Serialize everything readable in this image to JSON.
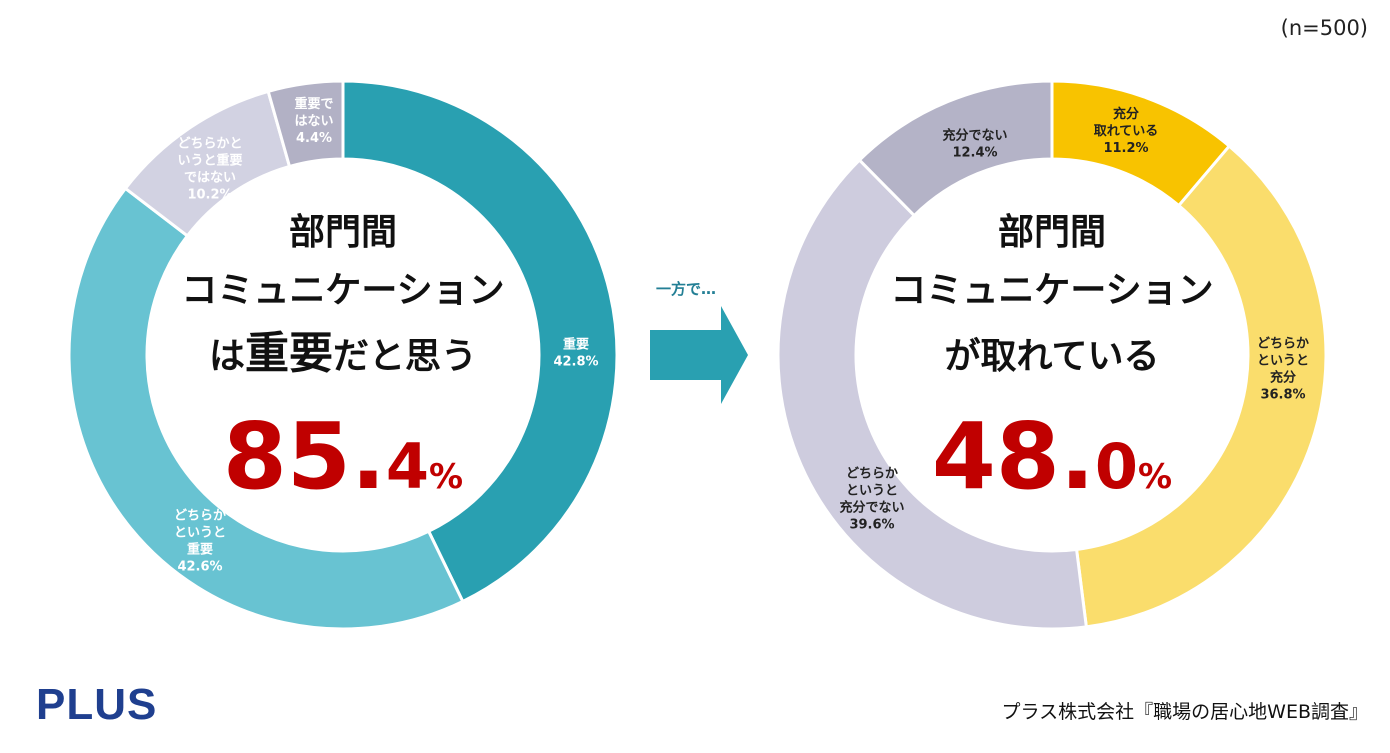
{
  "sample_size": "(n=500)",
  "brand": {
    "logo_text": "PLUS",
    "source": "プラス株式会社『職場の居心地WEB調査』"
  },
  "arrow": {
    "label": "一方で…"
  },
  "chart_data": [
    {
      "type": "pie",
      "donut": true,
      "center_title": [
        [
          {
            "text": "部門間",
            "big": false
          }
        ],
        [
          {
            "text": "コミュニケーション",
            "big": false
          }
        ],
        [
          {
            "text": "は",
            "big": false
          },
          {
            "text": "重要",
            "big": true
          },
          {
            "text": "だと思う",
            "big": false
          }
        ]
      ],
      "headline": {
        "number": "85.",
        "decimal": "4",
        "unit": "%"
      },
      "slices": [
        {
          "label_lines": [
            "重要",
            "42.8%"
          ],
          "value": 42.8,
          "color": "#29a0b1",
          "text_color": "#ffffff"
        },
        {
          "label_lines": [
            "どちらか",
            "というと",
            "重要",
            "42.6%"
          ],
          "value": 42.6,
          "color": "#68c3d2",
          "text_color": "#ffffff"
        },
        {
          "label_lines": [
            "どちらかと",
            "いうと重要",
            "ではない",
            "10.2%"
          ],
          "value": 10.2,
          "color": "#d2d2e2",
          "text_color": "#ffffff"
        },
        {
          "label_lines": [
            "重要で",
            "はない",
            "4.4%"
          ],
          "value": 4.4,
          "color": "#b2b1c5",
          "text_color": "#ffffff"
        }
      ]
    },
    {
      "type": "pie",
      "donut": true,
      "center_title": [
        [
          {
            "text": "部門間",
            "big": false
          }
        ],
        [
          {
            "text": "コミュニケーション",
            "big": false
          }
        ],
        [
          {
            "text": "が取れている",
            "big": false
          }
        ]
      ],
      "headline": {
        "number": "48.",
        "decimal": "0",
        "unit": "%"
      },
      "slices": [
        {
          "label_lines": [
            "充分",
            "取れている",
            "11.2%"
          ],
          "value": 11.2,
          "color": "#f8c300",
          "text_color": "#222222"
        },
        {
          "label_lines": [
            "どちらか",
            "というと",
            "充分",
            "36.8%"
          ],
          "value": 36.8,
          "color": "#fadd6c",
          "text_color": "#222222"
        },
        {
          "label_lines": [
            "どちらか",
            "というと",
            "充分でない",
            "39.6%"
          ],
          "value": 39.6,
          "color": "#ceccde",
          "text_color": "#222222"
        },
        {
          "label_lines": [
            "充分でない",
            "12.4%"
          ],
          "value": 12.4,
          "color": "#b4b3c7",
          "text_color": "#222222"
        }
      ]
    }
  ]
}
